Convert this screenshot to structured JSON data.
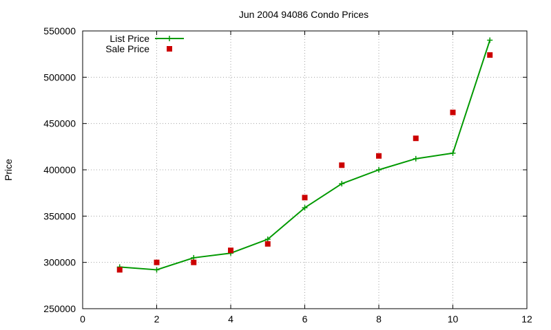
{
  "chart_data": {
    "type": "line",
    "title": "Jun 2004 94086 Condo Prices",
    "xlabel": "",
    "ylabel": "Price",
    "xlim": [
      0,
      12
    ],
    "ylim": [
      250000,
      550000
    ],
    "x_ticks": [
      "0",
      "2",
      "4",
      "6",
      "8",
      "10",
      "12"
    ],
    "y_ticks": [
      "250000",
      "300000",
      "350000",
      "400000",
      "450000",
      "500000",
      "550000"
    ],
    "grid": true,
    "legend": "top-left",
    "series": [
      {
        "name": "List Price",
        "style": "line+cross",
        "color": "#009900",
        "x": [
          1,
          2,
          3,
          4,
          5,
          6,
          7,
          8,
          9,
          10,
          11
        ],
        "values": [
          295000,
          292000,
          305000,
          310000,
          325000,
          359000,
          385000,
          400000,
          412000,
          418000,
          540000
        ]
      },
      {
        "name": "Sale Price",
        "style": "square-marker",
        "color": "#cc0000",
        "x": [
          1,
          2,
          3,
          4,
          5,
          6,
          7,
          8,
          9,
          10,
          11
        ],
        "values": [
          292000,
          300000,
          300000,
          313000,
          320000,
          370000,
          405000,
          415000,
          434000,
          462000,
          524000
        ]
      }
    ]
  }
}
